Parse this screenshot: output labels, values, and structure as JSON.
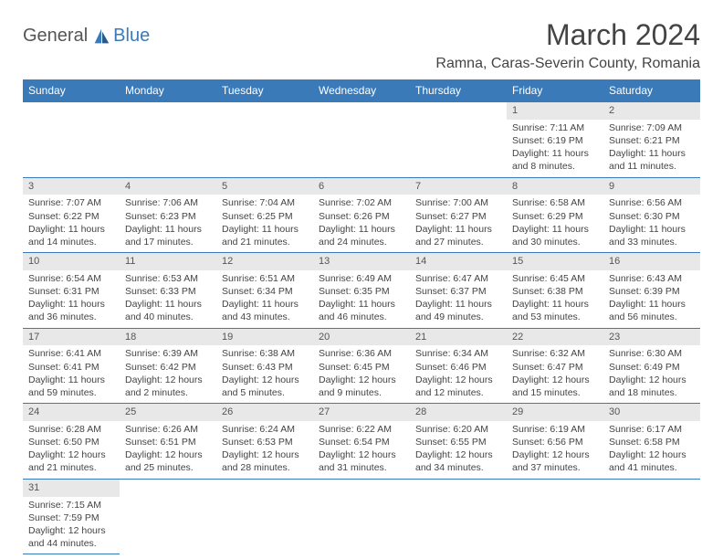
{
  "brand": {
    "name_part1": "General",
    "name_part2": "Blue",
    "color_general": "#555555",
    "color_blue": "#3a7ab8",
    "icon_color1": "#3a7ab8",
    "icon_color2": "#2a5a88"
  },
  "header": {
    "month_title": "March 2024",
    "location": "Ramna, Caras-Severin County, Romania"
  },
  "styling": {
    "header_bg": "#3a7ab8",
    "header_fg": "#ffffff",
    "daynum_bg": "#e8e8e8",
    "border_color": "#3a7ab8",
    "body_bg": "#ffffff",
    "text_color": "#444444",
    "title_fontsize": 32,
    "location_fontsize": 16,
    "weekday_fontsize": 12,
    "cell_fontsize": 10.5
  },
  "weekdays": [
    "Sunday",
    "Monday",
    "Tuesday",
    "Wednesday",
    "Thursday",
    "Friday",
    "Saturday"
  ],
  "weeks": [
    [
      null,
      null,
      null,
      null,
      null,
      {
        "n": "1",
        "sr": "Sunrise: 7:11 AM",
        "ss": "Sunset: 6:19 PM",
        "d1": "Daylight: 11 hours",
        "d2": "and 8 minutes."
      },
      {
        "n": "2",
        "sr": "Sunrise: 7:09 AM",
        "ss": "Sunset: 6:21 PM",
        "d1": "Daylight: 11 hours",
        "d2": "and 11 minutes."
      }
    ],
    [
      {
        "n": "3",
        "sr": "Sunrise: 7:07 AM",
        "ss": "Sunset: 6:22 PM",
        "d1": "Daylight: 11 hours",
        "d2": "and 14 minutes."
      },
      {
        "n": "4",
        "sr": "Sunrise: 7:06 AM",
        "ss": "Sunset: 6:23 PM",
        "d1": "Daylight: 11 hours",
        "d2": "and 17 minutes."
      },
      {
        "n": "5",
        "sr": "Sunrise: 7:04 AM",
        "ss": "Sunset: 6:25 PM",
        "d1": "Daylight: 11 hours",
        "d2": "and 21 minutes."
      },
      {
        "n": "6",
        "sr": "Sunrise: 7:02 AM",
        "ss": "Sunset: 6:26 PM",
        "d1": "Daylight: 11 hours",
        "d2": "and 24 minutes."
      },
      {
        "n": "7",
        "sr": "Sunrise: 7:00 AM",
        "ss": "Sunset: 6:27 PM",
        "d1": "Daylight: 11 hours",
        "d2": "and 27 minutes."
      },
      {
        "n": "8",
        "sr": "Sunrise: 6:58 AM",
        "ss": "Sunset: 6:29 PM",
        "d1": "Daylight: 11 hours",
        "d2": "and 30 minutes."
      },
      {
        "n": "9",
        "sr": "Sunrise: 6:56 AM",
        "ss": "Sunset: 6:30 PM",
        "d1": "Daylight: 11 hours",
        "d2": "and 33 minutes."
      }
    ],
    [
      {
        "n": "10",
        "sr": "Sunrise: 6:54 AM",
        "ss": "Sunset: 6:31 PM",
        "d1": "Daylight: 11 hours",
        "d2": "and 36 minutes."
      },
      {
        "n": "11",
        "sr": "Sunrise: 6:53 AM",
        "ss": "Sunset: 6:33 PM",
        "d1": "Daylight: 11 hours",
        "d2": "and 40 minutes."
      },
      {
        "n": "12",
        "sr": "Sunrise: 6:51 AM",
        "ss": "Sunset: 6:34 PM",
        "d1": "Daylight: 11 hours",
        "d2": "and 43 minutes."
      },
      {
        "n": "13",
        "sr": "Sunrise: 6:49 AM",
        "ss": "Sunset: 6:35 PM",
        "d1": "Daylight: 11 hours",
        "d2": "and 46 minutes."
      },
      {
        "n": "14",
        "sr": "Sunrise: 6:47 AM",
        "ss": "Sunset: 6:37 PM",
        "d1": "Daylight: 11 hours",
        "d2": "and 49 minutes."
      },
      {
        "n": "15",
        "sr": "Sunrise: 6:45 AM",
        "ss": "Sunset: 6:38 PM",
        "d1": "Daylight: 11 hours",
        "d2": "and 53 minutes."
      },
      {
        "n": "16",
        "sr": "Sunrise: 6:43 AM",
        "ss": "Sunset: 6:39 PM",
        "d1": "Daylight: 11 hours",
        "d2": "and 56 minutes."
      }
    ],
    [
      {
        "n": "17",
        "sr": "Sunrise: 6:41 AM",
        "ss": "Sunset: 6:41 PM",
        "d1": "Daylight: 11 hours",
        "d2": "and 59 minutes."
      },
      {
        "n": "18",
        "sr": "Sunrise: 6:39 AM",
        "ss": "Sunset: 6:42 PM",
        "d1": "Daylight: 12 hours",
        "d2": "and 2 minutes."
      },
      {
        "n": "19",
        "sr": "Sunrise: 6:38 AM",
        "ss": "Sunset: 6:43 PM",
        "d1": "Daylight: 12 hours",
        "d2": "and 5 minutes."
      },
      {
        "n": "20",
        "sr": "Sunrise: 6:36 AM",
        "ss": "Sunset: 6:45 PM",
        "d1": "Daylight: 12 hours",
        "d2": "and 9 minutes."
      },
      {
        "n": "21",
        "sr": "Sunrise: 6:34 AM",
        "ss": "Sunset: 6:46 PM",
        "d1": "Daylight: 12 hours",
        "d2": "and 12 minutes."
      },
      {
        "n": "22",
        "sr": "Sunrise: 6:32 AM",
        "ss": "Sunset: 6:47 PM",
        "d1": "Daylight: 12 hours",
        "d2": "and 15 minutes."
      },
      {
        "n": "23",
        "sr": "Sunrise: 6:30 AM",
        "ss": "Sunset: 6:49 PM",
        "d1": "Daylight: 12 hours",
        "d2": "and 18 minutes."
      }
    ],
    [
      {
        "n": "24",
        "sr": "Sunrise: 6:28 AM",
        "ss": "Sunset: 6:50 PM",
        "d1": "Daylight: 12 hours",
        "d2": "and 21 minutes."
      },
      {
        "n": "25",
        "sr": "Sunrise: 6:26 AM",
        "ss": "Sunset: 6:51 PM",
        "d1": "Daylight: 12 hours",
        "d2": "and 25 minutes."
      },
      {
        "n": "26",
        "sr": "Sunrise: 6:24 AM",
        "ss": "Sunset: 6:53 PM",
        "d1": "Daylight: 12 hours",
        "d2": "and 28 minutes."
      },
      {
        "n": "27",
        "sr": "Sunrise: 6:22 AM",
        "ss": "Sunset: 6:54 PM",
        "d1": "Daylight: 12 hours",
        "d2": "and 31 minutes."
      },
      {
        "n": "28",
        "sr": "Sunrise: 6:20 AM",
        "ss": "Sunset: 6:55 PM",
        "d1": "Daylight: 12 hours",
        "d2": "and 34 minutes."
      },
      {
        "n": "29",
        "sr": "Sunrise: 6:19 AM",
        "ss": "Sunset: 6:56 PM",
        "d1": "Daylight: 12 hours",
        "d2": "and 37 minutes."
      },
      {
        "n": "30",
        "sr": "Sunrise: 6:17 AM",
        "ss": "Sunset: 6:58 PM",
        "d1": "Daylight: 12 hours",
        "d2": "and 41 minutes."
      }
    ],
    [
      {
        "n": "31",
        "sr": "Sunrise: 7:15 AM",
        "ss": "Sunset: 7:59 PM",
        "d1": "Daylight: 12 hours",
        "d2": "and 44 minutes."
      },
      null,
      null,
      null,
      null,
      null,
      null
    ]
  ]
}
